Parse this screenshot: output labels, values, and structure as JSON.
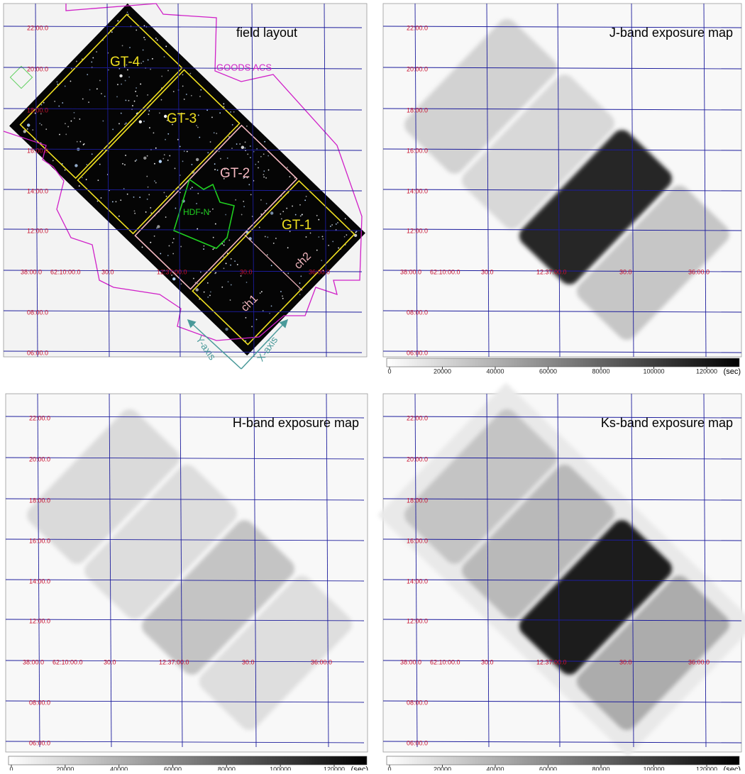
{
  "grid": {
    "dec_labels": [
      "22:00.0",
      "20:00.0",
      "18:00.0",
      "16:00.0",
      "14:00.0",
      "12:00.0",
      "08:00.0",
      "06:00.0"
    ],
    "ra_labels": [
      "38:00.0",
      "62:10:00.0",
      "30.0",
      "12:37:00.0",
      "30.0",
      "36:00.0"
    ]
  },
  "layout_panel": {
    "title": "field layout",
    "fields": [
      "GT-4",
      "GT-3",
      "GT-2",
      "GT-1"
    ],
    "survey": "GOODS ACS",
    "target": "HDF-N",
    "chips": [
      "ch1",
      "ch2"
    ],
    "axes": [
      "Y-axis",
      "X-axis"
    ]
  },
  "exposure_maps": [
    {
      "title": "J-band exposure map"
    },
    {
      "title": "H-band exposure map"
    },
    {
      "title": "Ks-band exposure map"
    }
  ],
  "colorbar": {
    "ticks": [
      0,
      20000,
      40000,
      60000,
      80000,
      100000,
      120000
    ],
    "unit": "(sec)"
  }
}
